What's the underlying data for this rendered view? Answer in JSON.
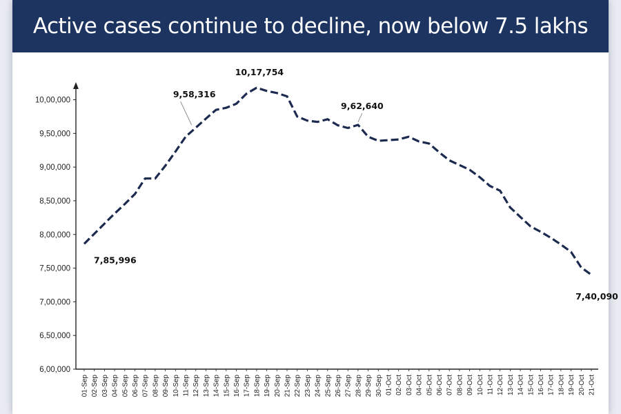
{
  "header": {
    "title": "Active cases continue to decline, now below 7.5 lakhs"
  },
  "colors": {
    "banner": "#1d3461",
    "line": "#1b2a4e",
    "axis": "#222222"
  },
  "chart_data": {
    "type": "line",
    "title": "Active cases continue to decline, now below 7.5 lakhs",
    "xlabel": "",
    "ylabel": "",
    "ylim": [
      600000,
      1020000
    ],
    "yticks": [
      600000,
      650000,
      700000,
      750000,
      800000,
      850000,
      900000,
      950000,
      1000000
    ],
    "ytick_labels": [
      "6,00,000",
      "6,50,000",
      "7,00,000",
      "7,50,000",
      "8,00,000",
      "8,50,000",
      "9,00,000",
      "9,50,000",
      "10,00,000"
    ],
    "grid": false,
    "legend": "none",
    "line_style": "dashed",
    "x": [
      "01-Sep",
      "02-Sep",
      "03-Sep",
      "04-Sep",
      "05-Sep",
      "06-Sep",
      "07-Sep",
      "08-Sep",
      "09-Sep",
      "10-Sep",
      "11-Sep",
      "12-Sep",
      "13-Sep",
      "14-Sep",
      "15-Sep",
      "16-Sep",
      "17-Sep",
      "18-Sep",
      "19-Sep",
      "20-Sep",
      "21-Sep",
      "22-Sep",
      "23-Sep",
      "24-Sep",
      "25-Sep",
      "26-Sep",
      "27-Sep",
      "28-Sep",
      "29-Sep",
      "30-Sep",
      "01-Oct",
      "02-Oct",
      "03-Oct",
      "04-Oct",
      "05-Oct",
      "06-Oct",
      "07-Oct",
      "08-Oct",
      "09-Oct",
      "10-Oct",
      "11-Oct",
      "12-Oct",
      "13-Oct",
      "14-Oct",
      "15-Oct",
      "16-Oct",
      "17-Oct",
      "18-Oct",
      "19-Oct",
      "20-Oct",
      "21-Oct"
    ],
    "series": [
      {
        "values": [
          785996,
          801000,
          816000,
          831000,
          845000,
          860000,
          883000,
          883000,
          902000,
          923000,
          945000,
          958316,
          972000,
          985000,
          988000,
          994000,
          1009000,
          1017754,
          1013000,
          1010000,
          1005000,
          975000,
          969000,
          967000,
          971000,
          962000,
          958000,
          962640,
          945000,
          939000,
          940000,
          941000,
          945000,
          938000,
          935000,
          922000,
          910000,
          903000,
          896000,
          885000,
          872000,
          865000,
          840000,
          826000,
          812000,
          804000,
          795000,
          785000,
          774000,
          751000,
          740090
        ]
      }
    ],
    "annotations": [
      {
        "label": "7,85,996",
        "index": 0,
        "value": 785996
      },
      {
        "label": "9,58,316",
        "index": 11,
        "value": 958316
      },
      {
        "label": "10,17,754",
        "index": 17,
        "value": 1017754
      },
      {
        "label": "9,62,640",
        "index": 27,
        "value": 962640
      },
      {
        "label": "7,40,090",
        "index": 50,
        "value": 740090
      }
    ]
  }
}
